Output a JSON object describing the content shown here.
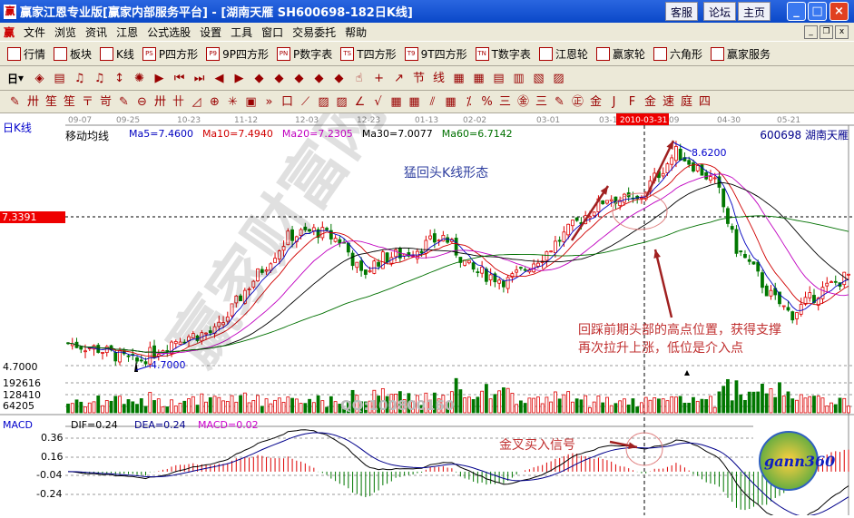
{
  "window": {
    "title": "赢家江恩专业版[赢家内部服务平台] - [湖南天雁   SH600698-182日K线]",
    "buttons": [
      "客服",
      "论坛",
      "主页"
    ]
  },
  "menu": [
    "文件",
    "浏览",
    "资讯",
    "江恩",
    "公式选股",
    "设置",
    "工具",
    "窗口",
    "交易委托",
    "帮助"
  ],
  "toolbar1": [
    {
      "icon": "table-icon",
      "label": "行情"
    },
    {
      "icon": "blocks-icon",
      "label": "板块"
    },
    {
      "icon": "kline-icon",
      "label": "K线"
    },
    {
      "icon": "PS",
      "label": "P四方形"
    },
    {
      "icon": "P9",
      "label": "9P四方形"
    },
    {
      "icon": "PN",
      "label": "P数字表"
    },
    {
      "icon": "TS",
      "label": "T四方形"
    },
    {
      "icon": "T9",
      "label": "9T四方形"
    },
    {
      "icon": "TN",
      "label": "T数字表"
    },
    {
      "icon": "gann-wheel-icon",
      "label": "江恩轮"
    },
    {
      "icon": "winner-wheel-icon",
      "label": "赢家轮"
    },
    {
      "icon": "hexagon-icon",
      "label": "六角形"
    },
    {
      "icon": "dollar-icon",
      "label": "赢家服务"
    }
  ],
  "toolbar2": {
    "period": "日",
    "icons": [
      "◈",
      "▤",
      "♫",
      "♫",
      "↕",
      "✺",
      "▶",
      "⏮",
      "⏭",
      "◀",
      "▶",
      "◆",
      "◆",
      "◆",
      "◆",
      "◆",
      "☝",
      "+",
      "↗",
      "节",
      "线",
      "▦",
      "▦",
      "▤",
      "▥",
      "▧",
      "▨"
    ]
  },
  "toolbar3": {
    "icons": [
      "✎",
      "卅",
      "笙",
      "笙",
      "〒",
      "岢",
      "✎",
      "⊖",
      "卅",
      "卄",
      "◿",
      "⊕",
      "✳",
      "▣",
      "»",
      "口",
      "⟋",
      "▨",
      "▨",
      "∠",
      "√",
      "▦",
      "▦",
      "⫽",
      "▦",
      "⁒",
      "%",
      "三",
      "㊎",
      "三",
      "✎",
      "㊣",
      "金",
      "J",
      "F",
      "金",
      "速",
      "庭",
      "四"
    ]
  },
  "chart": {
    "period_label": "日K线",
    "dates": [
      "09-07",
      "09-25",
      "10-23",
      "11-12",
      "12-03",
      "12-23",
      "01-13",
      "02-02",
      "03-01",
      "03-19",
      "2010-03-31",
      "09",
      "04-30",
      "05-21"
    ],
    "ma_title": "移动均线",
    "ma": [
      {
        "label": "Ma5=7.4600",
        "color": "#0000c0"
      },
      {
        "label": "Ma10=7.4940",
        "color": "#d00000"
      },
      {
        "label": "Ma20=7.2305",
        "color": "#c000c0"
      },
      {
        "label": "Ma30=7.0077",
        "color": "#000000"
      },
      {
        "label": "Ma60=6.7142",
        "color": "#007000"
      }
    ],
    "stock": "600698  湖南天雁",
    "cursor_price": "7.3391",
    "low_label": "4.7000",
    "high_label": "8.6200",
    "axis_low": "4.7000",
    "volume_ticks": [
      "192616",
      "128410",
      "64205"
    ],
    "watermark_qq": "QQ:100800160",
    "price_path": [
      [
        0,
        5.1
      ],
      [
        18,
        5.0
      ],
      [
        40,
        4.75
      ],
      [
        66,
        5.2
      ],
      [
        88,
        5.3
      ],
      [
        104,
        6.0
      ],
      [
        120,
        6.6
      ],
      [
        131,
        7.0
      ],
      [
        147,
        7.1
      ],
      [
        163,
        6.9
      ],
      [
        174,
        6.3
      ],
      [
        185,
        6.6
      ],
      [
        201,
        6.7
      ],
      [
        223,
        7.0
      ],
      [
        239,
        6.4
      ],
      [
        261,
        6.2
      ],
      [
        283,
        6.7
      ],
      [
        304,
        7.3
      ],
      [
        320,
        7.7
      ],
      [
        337,
        7.6
      ],
      [
        347,
        8.0
      ],
      [
        361,
        8.5
      ],
      [
        374,
        8.2
      ],
      [
        385,
        7.9
      ],
      [
        396,
        6.8
      ],
      [
        407,
        6.4
      ],
      [
        415,
        6.0
      ],
      [
        429,
        5.6
      ],
      [
        445,
        6.0
      ],
      [
        463,
        6.3
      ]
    ],
    "annotations": {
      "pattern": "猛回头K线形态",
      "note1": "回踩前期头部的高点位置，获得支撑",
      "note2": "再次拉升上涨，低位是介入点",
      "macd_note": "金叉买入信号"
    }
  },
  "macd": {
    "title": "MACD",
    "dif": "DIF=0.24",
    "dea": "DEA=0.24",
    "macd": "MACD=0.02",
    "ticks": [
      "0.36",
      "0.16",
      "-0.04",
      "-0.24"
    ]
  },
  "logo": "gann360",
  "colors": {
    "up": "#d00000",
    "down": "#007000",
    "titlebar": "#0a48c8",
    "toolbar": "#ece9d8"
  }
}
